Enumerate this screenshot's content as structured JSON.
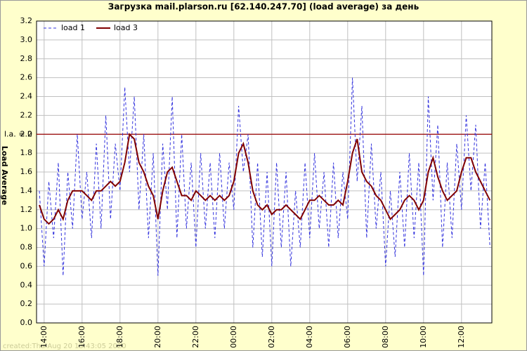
{
  "chart_data": {
    "type": "line",
    "title": "Загрузка mail.plarson.ru [62.140.247.70] (load average) за день",
    "ylabel": "Load Average",
    "footer": "created:Thu Aug 20 13:43:05 2020",
    "threshold": {
      "value": 2,
      "label": "l.a. = 2",
      "color": "#990000"
    },
    "grid": true,
    "legend": "top-left",
    "xlim": [
      -0.4,
      23.6
    ],
    "xticks": [
      {
        "value": 0,
        "label": "14:00"
      },
      {
        "value": 2,
        "label": "16:00"
      },
      {
        "value": 4,
        "label": "18:00"
      },
      {
        "value": 6,
        "label": "20:00"
      },
      {
        "value": 8,
        "label": "22:00"
      },
      {
        "value": 10,
        "label": "00:00"
      },
      {
        "value": 12,
        "label": "02:00"
      },
      {
        "value": 14,
        "label": "04:00"
      },
      {
        "value": 16,
        "label": "06:00"
      },
      {
        "value": 18,
        "label": "08:00"
      },
      {
        "value": 20,
        "label": "10:00"
      },
      {
        "value": 22,
        "label": "12:00"
      }
    ],
    "ylim": [
      0,
      3.2
    ],
    "yticks": [
      {
        "value": 0,
        "label": "0.0"
      },
      0.2,
      0.4,
      0.6,
      0.8,
      {
        "value": 1,
        "label": "1.0"
      },
      1.2,
      1.4,
      1.6,
      1.8,
      {
        "value": 2,
        "label": "2.0"
      },
      2.2,
      2.4,
      2.6,
      2.8,
      {
        "value": 3,
        "label": "3.0"
      },
      3.2
    ],
    "x": [
      -0.25,
      0,
      0.25,
      0.5,
      0.75,
      1,
      1.25,
      1.5,
      1.75,
      2,
      2.25,
      2.5,
      2.75,
      3,
      3.25,
      3.5,
      3.75,
      4,
      4.25,
      4.5,
      4.75,
      5,
      5.25,
      5.5,
      5.75,
      6,
      6.25,
      6.5,
      6.75,
      7,
      7.25,
      7.5,
      7.75,
      8,
      8.25,
      8.5,
      8.75,
      9,
      9.25,
      9.5,
      9.75,
      10,
      10.25,
      10.5,
      10.75,
      11,
      11.25,
      11.5,
      11.75,
      12,
      12.25,
      12.5,
      12.75,
      13,
      13.25,
      13.5,
      13.75,
      14,
      14.25,
      14.5,
      14.75,
      15,
      15.25,
      15.5,
      15.75,
      16,
      16.25,
      16.5,
      16.75,
      17,
      17.25,
      17.5,
      17.75,
      18,
      18.25,
      18.5,
      18.75,
      19,
      19.25,
      19.5,
      19.75,
      20,
      20.25,
      20.5,
      20.75,
      21,
      21.25,
      21.5,
      21.75,
      22,
      22.25,
      22.5,
      22.75,
      23,
      23.25,
      23.5
    ],
    "series": [
      {
        "name": "load 1",
        "color": "#3333dd",
        "style": "dashed",
        "values": [
          1.4,
          0.6,
          1.5,
          0.9,
          1.7,
          0.5,
          1.6,
          1.0,
          2.0,
          1.1,
          1.6,
          0.9,
          1.9,
          1.0,
          2.2,
          1.1,
          1.9,
          1.4,
          2.5,
          1.6,
          2.4,
          1.2,
          2.0,
          0.9,
          1.8,
          0.5,
          1.9,
          1.2,
          2.4,
          0.9,
          2.0,
          1.0,
          1.7,
          0.8,
          1.8,
          1.0,
          1.7,
          0.9,
          1.8,
          1.0,
          1.7,
          1.2,
          2.3,
          1.6,
          2.0,
          0.8,
          1.7,
          0.7,
          1.6,
          0.6,
          1.7,
          0.8,
          1.6,
          0.6,
          1.4,
          0.8,
          1.7,
          0.9,
          1.8,
          1.0,
          1.6,
          0.8,
          1.7,
          0.9,
          1.6,
          1.1,
          2.6,
          1.5,
          2.3,
          0.9,
          1.9,
          1.0,
          1.6,
          0.6,
          1.4,
          0.7,
          1.6,
          0.8,
          1.8,
          0.9,
          1.7,
          0.5,
          2.4,
          1.3,
          2.1,
          0.8,
          1.7,
          0.9,
          1.9,
          1.2,
          2.2,
          1.4,
          2.1,
          1.0,
          1.7,
          0.8
        ]
      },
      {
        "name": "load 3",
        "color": "#800000",
        "style": "solid",
        "values": [
          1.25,
          1.1,
          1.05,
          1.1,
          1.2,
          1.1,
          1.3,
          1.4,
          1.4,
          1.4,
          1.35,
          1.3,
          1.4,
          1.4,
          1.45,
          1.5,
          1.45,
          1.5,
          1.7,
          2.0,
          1.95,
          1.7,
          1.6,
          1.45,
          1.35,
          1.1,
          1.4,
          1.6,
          1.65,
          1.5,
          1.35,
          1.35,
          1.3,
          1.4,
          1.35,
          1.3,
          1.35,
          1.3,
          1.35,
          1.3,
          1.35,
          1.5,
          1.8,
          1.9,
          1.7,
          1.4,
          1.25,
          1.2,
          1.25,
          1.15,
          1.2,
          1.2,
          1.25,
          1.2,
          1.15,
          1.1,
          1.2,
          1.3,
          1.3,
          1.35,
          1.3,
          1.25,
          1.25,
          1.3,
          1.25,
          1.5,
          1.8,
          1.95,
          1.6,
          1.5,
          1.45,
          1.35,
          1.3,
          1.2,
          1.1,
          1.15,
          1.2,
          1.3,
          1.35,
          1.3,
          1.2,
          1.3,
          1.6,
          1.75,
          1.55,
          1.4,
          1.3,
          1.35,
          1.4,
          1.6,
          1.75,
          1.75,
          1.6,
          1.5,
          1.4,
          1.3
        ]
      }
    ]
  }
}
